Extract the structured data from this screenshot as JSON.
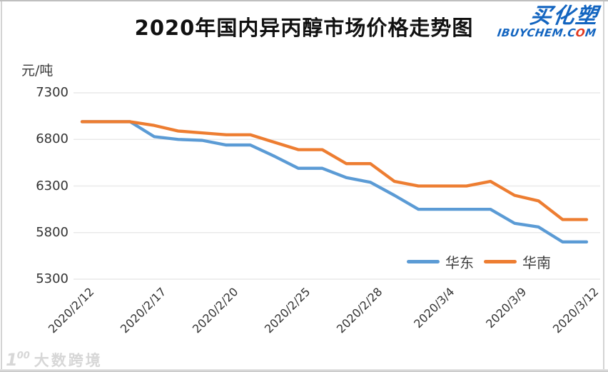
{
  "page": {
    "title": "2020年国内异丙醇市场价格走势图"
  },
  "brand": {
    "name_cn": "买化塑",
    "site_prefix": "IBUYCHEM.C",
    "site_o": "O",
    "site_suffix": "M"
  },
  "watermark": {
    "icon_num": "1",
    "icon_sup": "00",
    "text": "大数跨境"
  },
  "colors": {
    "huadong_blue": "#5B9BD5",
    "huanan_orange": "#ED7D31",
    "grid": "#e9e9e9",
    "axis_text": "#333333",
    "brand_blue": "#1365c0",
    "brand_o_red": "#e2391f"
  },
  "chart_data": {
    "type": "line",
    "title": "2020年国内异丙醇市场价格走势图",
    "unit_label": "元/吨",
    "ylim": [
      5300,
      7300
    ],
    "y_ticks": [
      7300,
      6800,
      6300,
      5800,
      5300
    ],
    "x_labels": [
      "2020/2/12",
      "2020/2/17",
      "2020/2/20",
      "2020/2/25",
      "2020/2/28",
      "2020/3/4",
      "2020/3/9",
      "2020/3/12"
    ],
    "label_indices": [
      0,
      3,
      6,
      9,
      12,
      15,
      18,
      21
    ],
    "n_points": 22,
    "grid": true,
    "legend_position": "bottom-right-inside",
    "series": [
      {
        "name": "华东",
        "color": "#5B9BD5",
        "values": [
          6990,
          6990,
          6990,
          6830,
          6800,
          6790,
          6740,
          6740,
          6620,
          6490,
          6490,
          6390,
          6340,
          6200,
          6050,
          6050,
          6050,
          6050,
          5900,
          5860,
          5700,
          5700
        ]
      },
      {
        "name": "华南",
        "color": "#ED7D31",
        "values": [
          6990,
          6990,
          6990,
          6950,
          6890,
          6870,
          6850,
          6850,
          6770,
          6690,
          6690,
          6540,
          6540,
          6350,
          6300,
          6300,
          6300,
          6350,
          6200,
          6140,
          5940,
          5940
        ]
      }
    ]
  }
}
